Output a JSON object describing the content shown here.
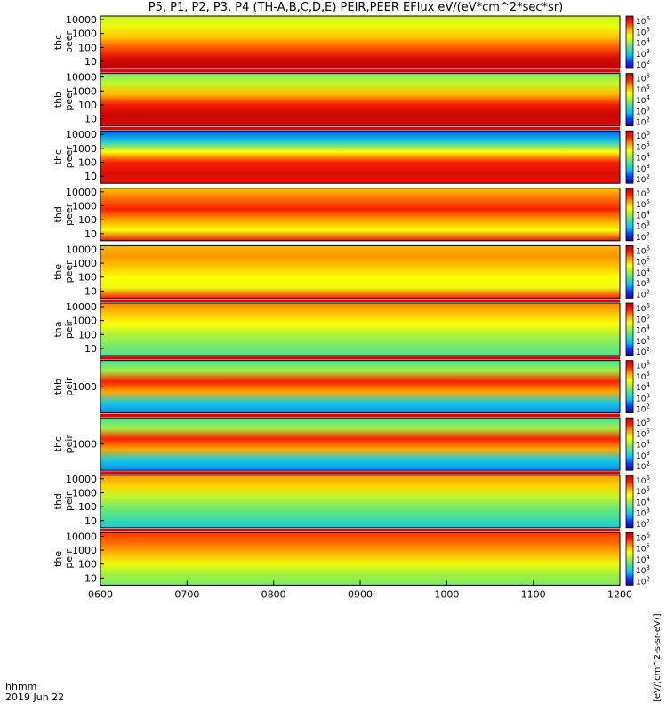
{
  "title": "P5, P1, P2, P3, P4 (TH-A,B,C,D,E) PEIR,PEER EFlux eV/(eV*cm^2*sec*sr)",
  "footer": {
    "time_label": "hhmm",
    "date_label": "2019 Jun 22"
  },
  "colorbar_label": "[eV/(cm^2-s-sr-eV)]",
  "chart_data": {
    "type": "heatmap",
    "x_ticks": [
      "0600",
      "0700",
      "0800",
      "0900",
      "1000",
      "1100",
      "1200"
    ],
    "x_range": [
      "0600",
      "1200"
    ],
    "colorbar_ticks": [
      "10^2",
      "10^3",
      "10^4",
      "10^5",
      "10^6"
    ],
    "colorscale": [
      "#2000a0",
      "#0040ff",
      "#00c0ff",
      "#40e0a0",
      "#a0f040",
      "#ffff00",
      "#ffa000",
      "#ff2000",
      "#c00000"
    ],
    "panels": [
      {
        "label1": "thc",
        "label2": "peer",
        "yticks": [
          "10000",
          "1000",
          "100",
          "10"
        ],
        "bar_above": false,
        "band_pattern": [
          0.55,
          0.6,
          0.7,
          0.82,
          0.95,
          1.0
        ]
      },
      {
        "label1": "thb",
        "label2": "peer",
        "yticks": [
          "10000",
          "1000",
          "100",
          "10"
        ],
        "bar_above": true,
        "band_pattern": [
          0.45,
          0.55,
          0.72,
          0.9,
          0.98,
          0.95
        ]
      },
      {
        "label1": "thc",
        "label2": "peer",
        "yticks": [
          "10000",
          "1000",
          "100",
          "10"
        ],
        "bar_above": true,
        "band_pattern": [
          0.15,
          0.3,
          0.62,
          0.88,
          0.95,
          0.92
        ]
      },
      {
        "label1": "thd",
        "label2": "peer",
        "yticks": [
          "10000",
          "1000",
          "100",
          "10"
        ],
        "bar_above": false,
        "band_pattern": [
          0.7,
          0.8,
          0.88,
          0.75,
          0.62,
          0.92
        ]
      },
      {
        "label1": "the",
        "label2": "peer",
        "yticks": [
          "10000",
          "1000",
          "100",
          "10"
        ],
        "bar_above": false,
        "band_pattern": [
          0.72,
          0.76,
          0.7,
          0.62,
          0.6,
          0.88
        ]
      },
      {
        "label1": "tha",
        "label2": "peir",
        "yticks": [
          "10000",
          "1000",
          "100",
          "10"
        ],
        "bar_above": true,
        "band_pattern": [
          0.78,
          0.7,
          0.62,
          0.52,
          0.45,
          0.4
        ]
      },
      {
        "label1": "thb",
        "label2": "peir",
        "yticks": [
          "1000"
        ],
        "bar_above": true,
        "band_pattern": [
          0.38,
          0.5,
          0.88,
          0.74,
          0.3,
          0.2
        ]
      },
      {
        "label1": "thc",
        "label2": "peir",
        "yticks": [
          "1000"
        ],
        "bar_above": true,
        "band_pattern": [
          0.38,
          0.5,
          0.88,
          0.74,
          0.3,
          0.2
        ]
      },
      {
        "label1": "thd",
        "label2": "peir",
        "yticks": [
          "10000",
          "1000",
          "100",
          "10"
        ],
        "bar_above": true,
        "band_pattern": [
          0.76,
          0.68,
          0.55,
          0.45,
          0.38,
          0.3
        ]
      },
      {
        "label1": "the",
        "label2": "peir",
        "yticks": [
          "10000",
          "1000",
          "100",
          "10"
        ],
        "bar_above": true,
        "band_pattern": [
          0.85,
          0.8,
          0.72,
          0.6,
          0.5,
          0.45
        ]
      }
    ]
  }
}
